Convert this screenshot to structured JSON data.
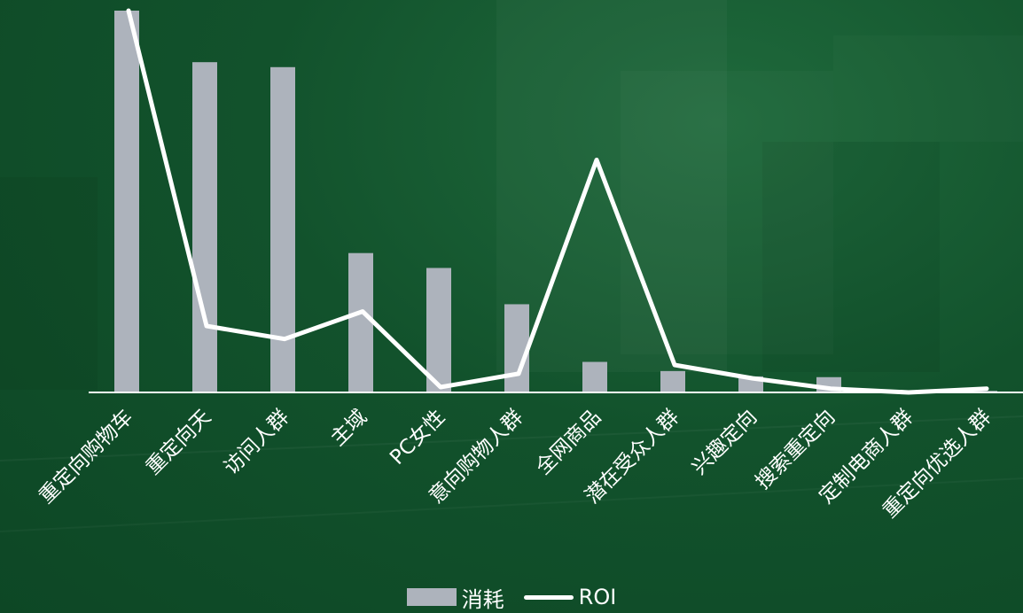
{
  "colors": {
    "background": "#0f4d29",
    "bar": "#adb3bc",
    "line": "#ffffff",
    "label": "#ffffff"
  },
  "legend": {
    "bar_label": "消耗",
    "line_label": "ROI"
  },
  "chart_data": {
    "type": "bar",
    "combo": "bar+line",
    "categories": [
      "重定向购物车",
      "重定向天",
      "访问人群",
      "主域",
      "PC女性",
      "意向购物人群",
      "全网商品",
      "潜在受众人群",
      "兴趣定向",
      "搜索重定向",
      "定制电商人群",
      "重定向优选人群"
    ],
    "series": [
      {
        "name": "消耗",
        "type": "bar",
        "values": [
          100,
          86.5,
          85.2,
          36.5,
          32.6,
          23.1,
          8,
          5.6,
          4.2,
          4,
          0.2,
          0.4
        ]
      },
      {
        "name": "ROI",
        "type": "line",
        "values": [
          100,
          17.4,
          14,
          21.2,
          1.4,
          4.9,
          60.9,
          7.2,
          3.7,
          1,
          0,
          1
        ]
      }
    ],
    "y_axis_visible": false,
    "grid": false,
    "legend_position": "bottom-center",
    "label_rotation": -45
  }
}
